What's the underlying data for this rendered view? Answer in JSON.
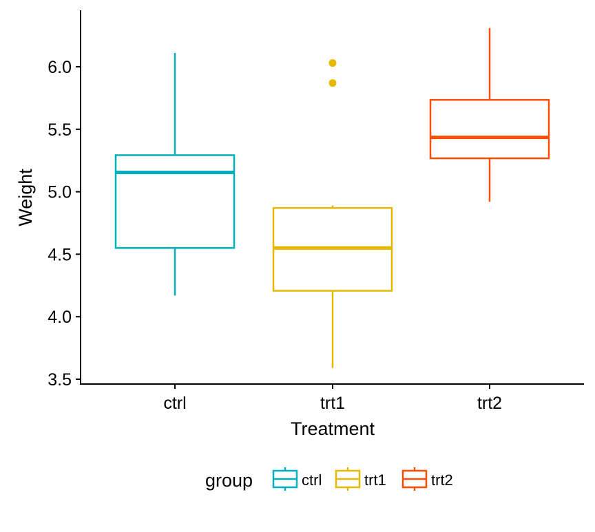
{
  "chart_data": {
    "type": "box",
    "title": "",
    "xlabel": "Treatment",
    "ylabel": "Weight",
    "ylim": [
      3.5,
      6.3
    ],
    "yticks": [
      3.5,
      4.0,
      4.5,
      5.0,
      5.5,
      6.0
    ],
    "categories": [
      "ctrl",
      "trt1",
      "trt2"
    ],
    "grid": false,
    "legend": {
      "title": "group",
      "position": "bottom",
      "entries": [
        "ctrl",
        "trt1",
        "trt2"
      ]
    },
    "colors": {
      "ctrl": "#00AFBB",
      "trt1": "#E7B800",
      "trt2": "#FC4E07"
    },
    "boxes": [
      {
        "group": "ctrl",
        "lower_whisker": 4.17,
        "q1": 4.55,
        "median": 5.155,
        "q3": 5.2925,
        "upper_whisker": 6.11,
        "outliers": []
      },
      {
        "group": "trt1",
        "lower_whisker": 3.59,
        "q1": 4.2075,
        "median": 4.55,
        "q3": 4.87,
        "upper_whisker": 4.89,
        "outliers": [
          5.87,
          6.03
        ]
      },
      {
        "group": "trt2",
        "lower_whisker": 4.92,
        "q1": 5.2675,
        "median": 5.435,
        "q3": 5.735,
        "upper_whisker": 6.31,
        "outliers": []
      }
    ]
  }
}
